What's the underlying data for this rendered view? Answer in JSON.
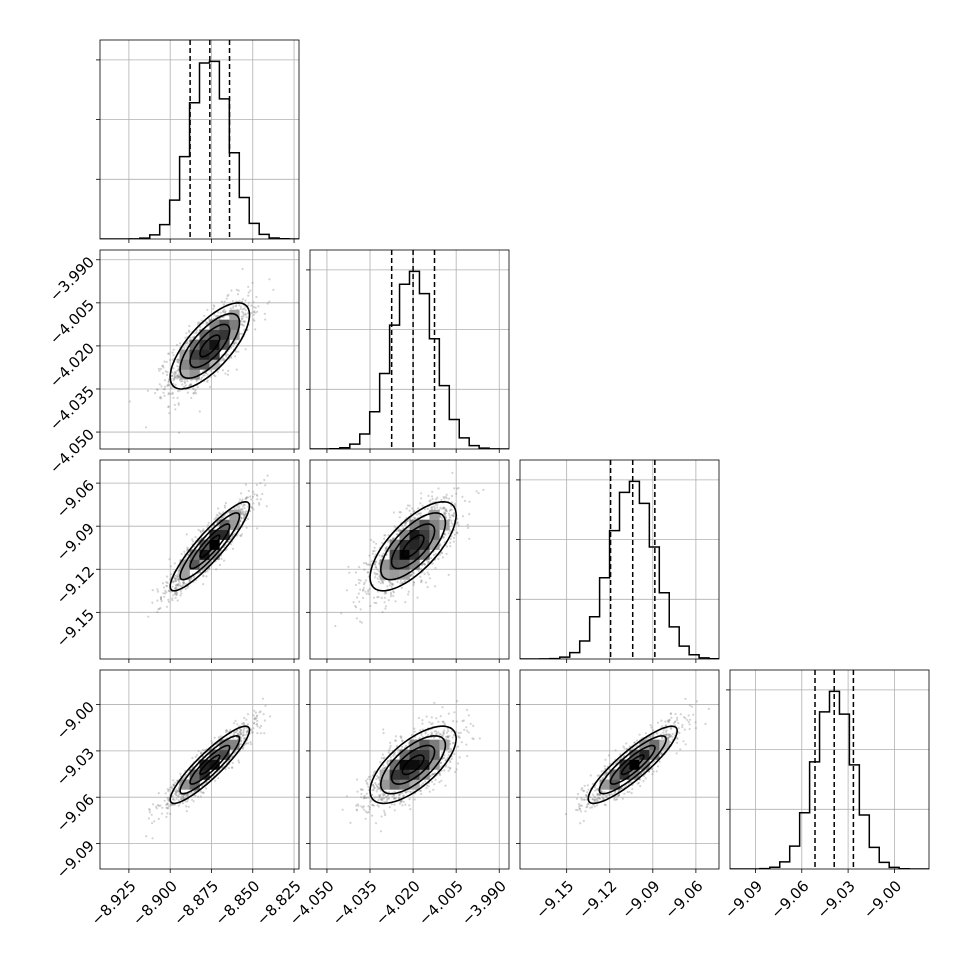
{
  "chart_data": {
    "type": "corner",
    "description_free": true,
    "parameters": [
      {
        "mean": -8.876,
        "sigma": 0.012,
        "range": [
          -8.9425,
          -8.822
        ],
        "ticks": [
          -8.925,
          -8.9,
          -8.875,
          -8.85,
          -8.825
        ],
        "tick_labels": [
          "−8.925",
          "−8.900",
          "−8.875",
          "−8.850",
          "−8.825"
        ]
      },
      {
        "mean": -4.02,
        "sigma": 0.0075,
        "range": [
          -4.0559,
          -3.9866
        ],
        "ticks": [
          -4.05,
          -4.035,
          -4.02,
          -4.005,
          -3.99
        ],
        "tick_labels": [
          "−4.050",
          "−4.035",
          "−4.020",
          "−4.005",
          "−3.990"
        ]
      },
      {
        "mean": -9.104,
        "sigma": 0.0155,
        "range": [
          -9.1825,
          -9.0439
        ],
        "ticks": [
          -9.15,
          -9.12,
          -9.09,
          -9.06
        ],
        "tick_labels": [
          "−9.15",
          "−9.12",
          "−9.09",
          "−9.06"
        ]
      },
      {
        "mean": -9.039,
        "sigma": 0.0125,
        "range": [
          -9.1065,
          -8.9776
        ],
        "ticks": [
          -9.09,
          -9.06,
          -9.03,
          -9.0
        ],
        "tick_labels": [
          "−9.09",
          "−9.06",
          "−9.03",
          "−9.00"
        ]
      }
    ],
    "correlations": [
      {
        "i": 1,
        "j": 0,
        "rho": 0.72
      },
      {
        "i": 2,
        "j": 0,
        "rho": 0.9
      },
      {
        "i": 2,
        "j": 1,
        "rho": 0.7
      },
      {
        "i": 3,
        "j": 0,
        "rho": 0.9
      },
      {
        "i": 3,
        "j": 1,
        "rho": 0.68
      },
      {
        "i": 3,
        "j": 2,
        "rho": 0.88
      }
    ],
    "quantiles": [
      0.16,
      0.5,
      0.84
    ],
    "histogram_bins": 20,
    "contour_levels_sigma": [
      0.5,
      1.0,
      1.5,
      2.0
    ],
    "grid": true,
    "colors": {
      "line": "#000000",
      "points": "#808080",
      "grid": "#b0b0b0"
    }
  }
}
